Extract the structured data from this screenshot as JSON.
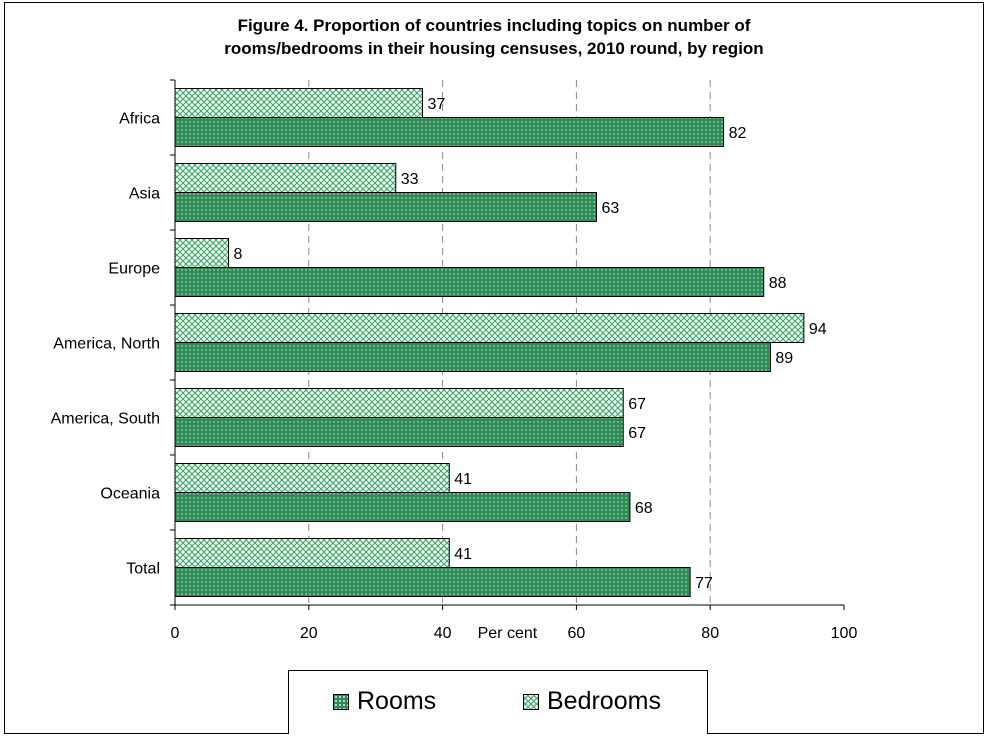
{
  "title_line1": "Figure 4. Proportion of countries including topics on number of",
  "title_line2": "rooms/bedrooms in their housing censuses, 2010 round, by region",
  "chart_data": {
    "type": "bar",
    "orientation": "horizontal",
    "title": "Figure 4. Proportion of countries including topics on number of rooms/bedrooms in their housing censuses, 2010 round, by region",
    "xlabel": "Per cent",
    "ylabel": "",
    "categories": [
      "Africa",
      "Asia",
      "Europe",
      "America, North",
      "America, South",
      "Oceania",
      "Total"
    ],
    "series": [
      {
        "name": "Bedrooms",
        "values": [
          37,
          33,
          8,
          94,
          67,
          41,
          41
        ]
      },
      {
        "name": "Rooms",
        "values": [
          82,
          63,
          88,
          89,
          67,
          68,
          77
        ]
      }
    ],
    "xlim": [
      0,
      100
    ],
    "xticks": [
      0,
      20,
      40,
      60,
      80,
      100
    ],
    "grid": "vertical dashed",
    "legend": "bottom",
    "colors": {
      "rooms": "#2e8b57",
      "bedrooms_pattern": "#3aa36a",
      "bedrooms_bg": "#eef8f0"
    }
  },
  "legend": {
    "rooms": "Rooms",
    "bedrooms": "Bedrooms"
  }
}
